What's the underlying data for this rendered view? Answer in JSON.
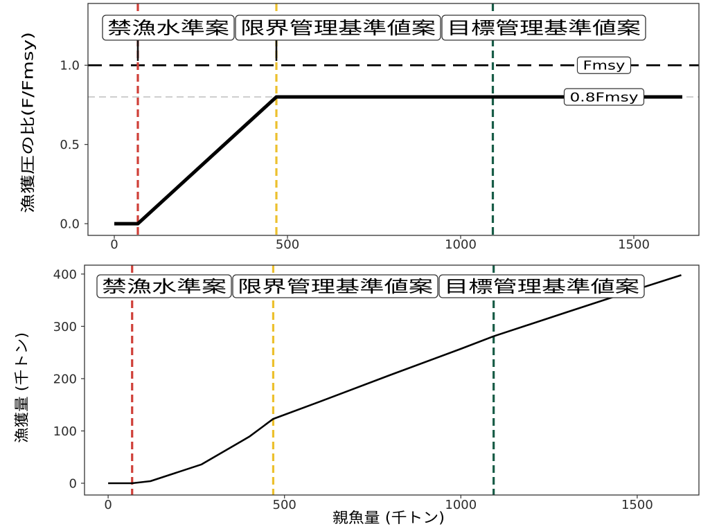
{
  "chart_data": [
    {
      "type": "line",
      "ylabel": "漁獲圧の比(F/Fmsy)",
      "xlim": [
        -76,
        1688
      ],
      "ylim": [
        -0.074,
        1.39
      ],
      "xticks": [
        0,
        500,
        1000,
        1500
      ],
      "xtick_labels": [
        "0",
        "500",
        "1000",
        "1500"
      ],
      "yticks": [
        0,
        0.5,
        1.0
      ],
      "ytick_labels": [
        "0.0",
        "0.5",
        "1.0"
      ],
      "grid": false,
      "series": [
        {
          "x": [
            0,
            68,
            468,
            1640
          ],
          "y": [
            0,
            0,
            0.8,
            0.8
          ],
          "color": "#000000"
        }
      ],
      "vlines": [
        {
          "x": 68,
          "label": "禁漁水準案",
          "color": "#cf3f38",
          "linestyle": "dashed"
        },
        {
          "x": 468,
          "label": "限界管理基準値案",
          "color": "#ecc02e",
          "linestyle": "dashed"
        },
        {
          "x": 1093,
          "label": "目標管理基準値案",
          "color": "#185c47",
          "linestyle": "dashed"
        }
      ],
      "hlines": [
        {
          "y": 1.0,
          "label": "Fmsy",
          "color": "#000000",
          "linestyle": "dashed"
        },
        {
          "y": 0.8,
          "label": "0.8Fmsy",
          "color": "#bdbdbd",
          "linestyle": "dashed"
        }
      ]
    },
    {
      "type": "line",
      "xlabel": "親魚量 (千トン)",
      "ylabel": "漁獲量 (千トン)",
      "xlim": [
        -67,
        1675
      ],
      "ylim": [
        -22.5,
        417
      ],
      "xticks": [
        0,
        500,
        1000,
        1500
      ],
      "xtick_labels": [
        "0",
        "500",
        "1000",
        "1500"
      ],
      "yticks": [
        0,
        100,
        200,
        300,
        400
      ],
      "ytick_labels": [
        "0",
        "100",
        "200",
        "300",
        "400"
      ],
      "grid": false,
      "series": [
        {
          "x": [
            0,
            68,
            120,
            265,
            400,
            468,
            600,
            800,
            1000,
            1093,
            1300,
            1500,
            1625
          ],
          "y": [
            0,
            0,
            4,
            36,
            89,
            123,
            156,
            207,
            257,
            281,
            327,
            371,
            398
          ],
          "color": "#000000"
        }
      ],
      "vlines": [
        {
          "x": 68,
          "label": "禁漁水準案",
          "color": "#cf3f38",
          "linestyle": "dashed"
        },
        {
          "x": 468,
          "label": "限界管理基準値案",
          "color": "#ecc02e",
          "linestyle": "dashed"
        },
        {
          "x": 1093,
          "label": "目標管理基準値案",
          "color": "#185c47",
          "linestyle": "dashed"
        }
      ]
    }
  ]
}
